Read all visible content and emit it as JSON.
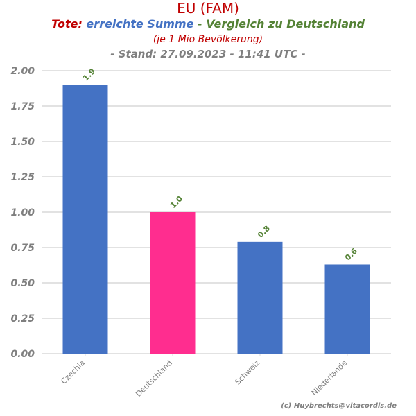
{
  "title": {
    "main": "EU (FAM)",
    "line2_prefix": "Tote:",
    "line2_mid": "erreichte Summe",
    "line2_suffix": "- Vergleich zu Deutschland",
    "line3": "(je 1 Mio Bevölkerung)",
    "line4": "- Stand: 27.09.2023 - 11:41 UTC -"
  },
  "credit": "(c) Huybrechts@vitacordis.de",
  "colors": {
    "title_red": "#c00000",
    "title_blue": "#4472c4",
    "title_green": "#548235",
    "bar_default": "#4472c4",
    "bar_highlight": "#ff2d8f",
    "label_green": "#548235",
    "tick_gray": "#7f7f7f",
    "grid": "#d9d9d9"
  },
  "chart_data": {
    "type": "bar",
    "categories": [
      "Czechia",
      "Deutschland",
      "Schweiz",
      "Niederlande"
    ],
    "values": [
      1.9,
      1.0,
      0.79,
      0.63
    ],
    "data_labels": [
      "1.9",
      "1.0",
      "0.8",
      "0.6"
    ],
    "highlight_category": "Deutschland",
    "ylim": [
      0,
      2.0
    ],
    "yticks": [
      "0.00",
      "0.25",
      "0.50",
      "0.75",
      "1.00",
      "1.25",
      "1.50",
      "1.75",
      "2.00"
    ],
    "grid": true,
    "xlabel": "",
    "ylabel": ""
  }
}
